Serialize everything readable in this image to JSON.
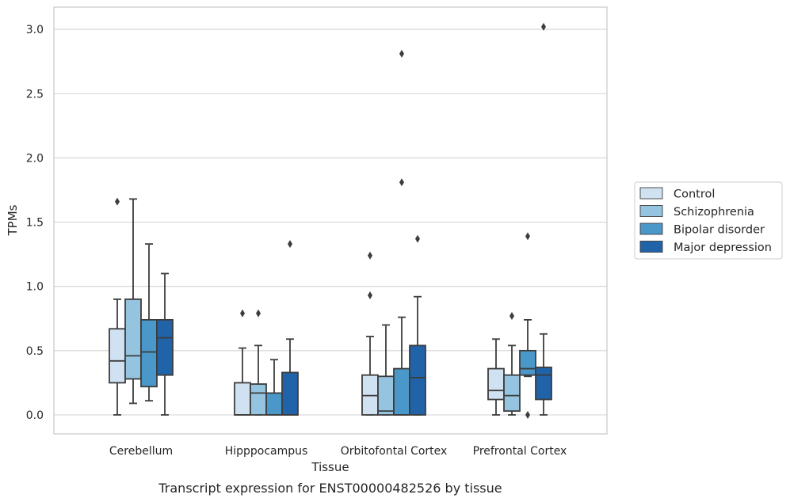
{
  "caption": "Transcript expression for ENST00000482526 by tissue",
  "chart_data": {
    "type": "boxplot",
    "xlabel": "Tissue",
    "ylabel": "TPMs",
    "categories": [
      "Cerebellum",
      "Hipppocampus",
      "Orbitofontal Cortex",
      "Prefrontal Cortex"
    ],
    "ylim": [
      -0.15,
      3.18
    ],
    "yticks": [
      "0.0",
      "0.5",
      "1.0",
      "1.5",
      "2.0",
      "2.5",
      "3.0"
    ],
    "ytick_values": [
      0,
      0.5,
      1.0,
      1.5,
      2.0,
      2.5,
      3.0
    ],
    "grid": "horizontal",
    "legend_position": "right",
    "series": [
      {
        "name": "Control",
        "color": "#d0e1f2",
        "boxes": [
          {
            "whislo": 0.0,
            "q1": 0.25,
            "med": 0.42,
            "q3": 0.67,
            "whishi": 0.9,
            "fliers": [
              1.66
            ]
          },
          {
            "whislo": 0.0,
            "q1": 0.0,
            "med": 0.0,
            "q3": 0.25,
            "whishi": 0.52,
            "fliers": [
              0.79
            ]
          },
          {
            "whislo": 0.0,
            "q1": 0.0,
            "med": 0.15,
            "q3": 0.31,
            "whishi": 0.61,
            "fliers": [
              0.93,
              1.24
            ]
          },
          {
            "whislo": 0.0,
            "q1": 0.12,
            "med": 0.19,
            "q3": 0.36,
            "whishi": 0.59,
            "fliers": []
          }
        ]
      },
      {
        "name": "Schizophrenia",
        "color": "#94c4df",
        "boxes": [
          {
            "whislo": 0.09,
            "q1": 0.28,
            "med": 0.46,
            "q3": 0.9,
            "whishi": 1.68,
            "fliers": []
          },
          {
            "whislo": 0.0,
            "q1": 0.0,
            "med": 0.17,
            "q3": 0.24,
            "whishi": 0.54,
            "fliers": [
              0.79
            ]
          },
          {
            "whislo": 0.0,
            "q1": 0.0,
            "med": 0.03,
            "q3": 0.3,
            "whishi": 0.7,
            "fliers": []
          },
          {
            "whislo": 0.0,
            "q1": 0.03,
            "med": 0.15,
            "q3": 0.31,
            "whishi": 0.54,
            "fliers": [
              0.77
            ]
          }
        ]
      },
      {
        "name": "Bipolar disorder",
        "color": "#4a98c9",
        "boxes": [
          {
            "whislo": 0.11,
            "q1": 0.22,
            "med": 0.49,
            "q3": 0.74,
            "whishi": 1.33,
            "fliers": []
          },
          {
            "whislo": 0.0,
            "q1": 0.0,
            "med": 0.0,
            "q3": 0.17,
            "whishi": 0.43,
            "fliers": []
          },
          {
            "whislo": 0.0,
            "q1": 0.0,
            "med": 0.0,
            "q3": 0.36,
            "whishi": 0.76,
            "fliers": [
              1.81,
              2.81
            ]
          },
          {
            "whislo": 0.3,
            "q1": 0.31,
            "med": 0.36,
            "q3": 0.5,
            "whishi": 0.74,
            "fliers": [
              1.39,
              0.0
            ]
          }
        ]
      },
      {
        "name": "Major depression",
        "color": "#2163a8",
        "boxes": [
          {
            "whislo": 0.0,
            "q1": 0.31,
            "med": 0.6,
            "q3": 0.74,
            "whishi": 1.1,
            "fliers": []
          },
          {
            "whislo": 0.0,
            "q1": 0.0,
            "med": 0.0,
            "q3": 0.33,
            "whishi": 0.59,
            "fliers": [
              1.33
            ]
          },
          {
            "whislo": 0.0,
            "q1": 0.0,
            "med": 0.29,
            "q3": 0.54,
            "whishi": 0.92,
            "fliers": [
              1.37
            ]
          },
          {
            "whislo": 0.0,
            "q1": 0.12,
            "med": 0.31,
            "q3": 0.37,
            "whishi": 0.63,
            "fliers": [
              3.02
            ]
          }
        ]
      }
    ]
  }
}
